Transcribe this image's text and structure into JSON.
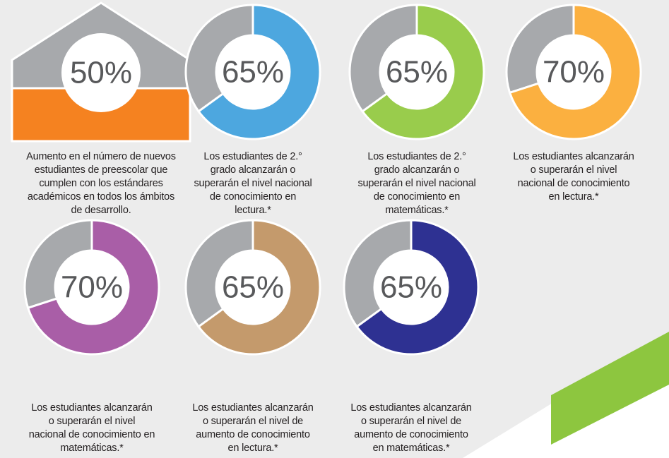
{
  "chart_data": [
    {
      "type": "house",
      "values": [
        50
      ],
      "value_labels": [
        "50%"
      ],
      "color": "#f58220",
      "remainder_color": "#a7a9ac",
      "description": [
        "Aumento en el número de nuevos",
        "estudiantes de preescolar que",
        "cumplen con los estándares",
        "académicos en todos los ámbitos",
        "de desarrollo."
      ]
    },
    {
      "type": "donut",
      "values": [
        65
      ],
      "value_labels": [
        "65%"
      ],
      "color": "#4da7df",
      "remainder_color": "#a7a9ac",
      "description": [
        "Los estudiantes de 2.°",
        "grado alcanzarán o",
        "superarán el nivel nacional",
        "de conocimiento en",
        "lectura.*"
      ]
    },
    {
      "type": "donut",
      "values": [
        65
      ],
      "value_labels": [
        "65%"
      ],
      "color": "#99cc4c",
      "remainder_color": "#a7a9ac",
      "description": [
        "Los estudiantes de 2.°",
        "grado alcanzarán o",
        "superarán el nivel nacional",
        "de conocimiento en",
        "matemáticas.*"
      ]
    },
    {
      "type": "donut",
      "values": [
        70
      ],
      "value_labels": [
        "70%"
      ],
      "color": "#fbb040",
      "remainder_color": "#a7a9ac",
      "description": [
        "Los estudiantes alcanzarán",
        "o superarán el  nivel",
        "nacional de conocimiento",
        "en lectura.*"
      ]
    },
    {
      "type": "donut",
      "values": [
        70
      ],
      "value_labels": [
        "70%"
      ],
      "color": "#a95ea7",
      "remainder_color": "#a7a9ac",
      "description": [
        "Los estudiantes alcanzarán",
        "o superarán el  nivel",
        "nacional de conocimiento en",
        "matemáticas.*"
      ]
    },
    {
      "type": "donut",
      "values": [
        65
      ],
      "value_labels": [
        "65%"
      ],
      "color": "#c49a6c",
      "remainder_color": "#a7a9ac",
      "description": [
        "Los estudiantes alcanzarán",
        "o superarán el nivel de",
        "aumento de conocimiento",
        "en lectura.*"
      ]
    },
    {
      "type": "donut",
      "values": [
        65
      ],
      "value_labels": [
        "65%"
      ],
      "color": "#2e3192",
      "remainder_color": "#a7a9ac",
      "description": [
        "Los estudiantes alcanzarán",
        "o superarán el nivel de",
        "aumento de conocimiento",
        "en matemáticas.*"
      ]
    }
  ]
}
